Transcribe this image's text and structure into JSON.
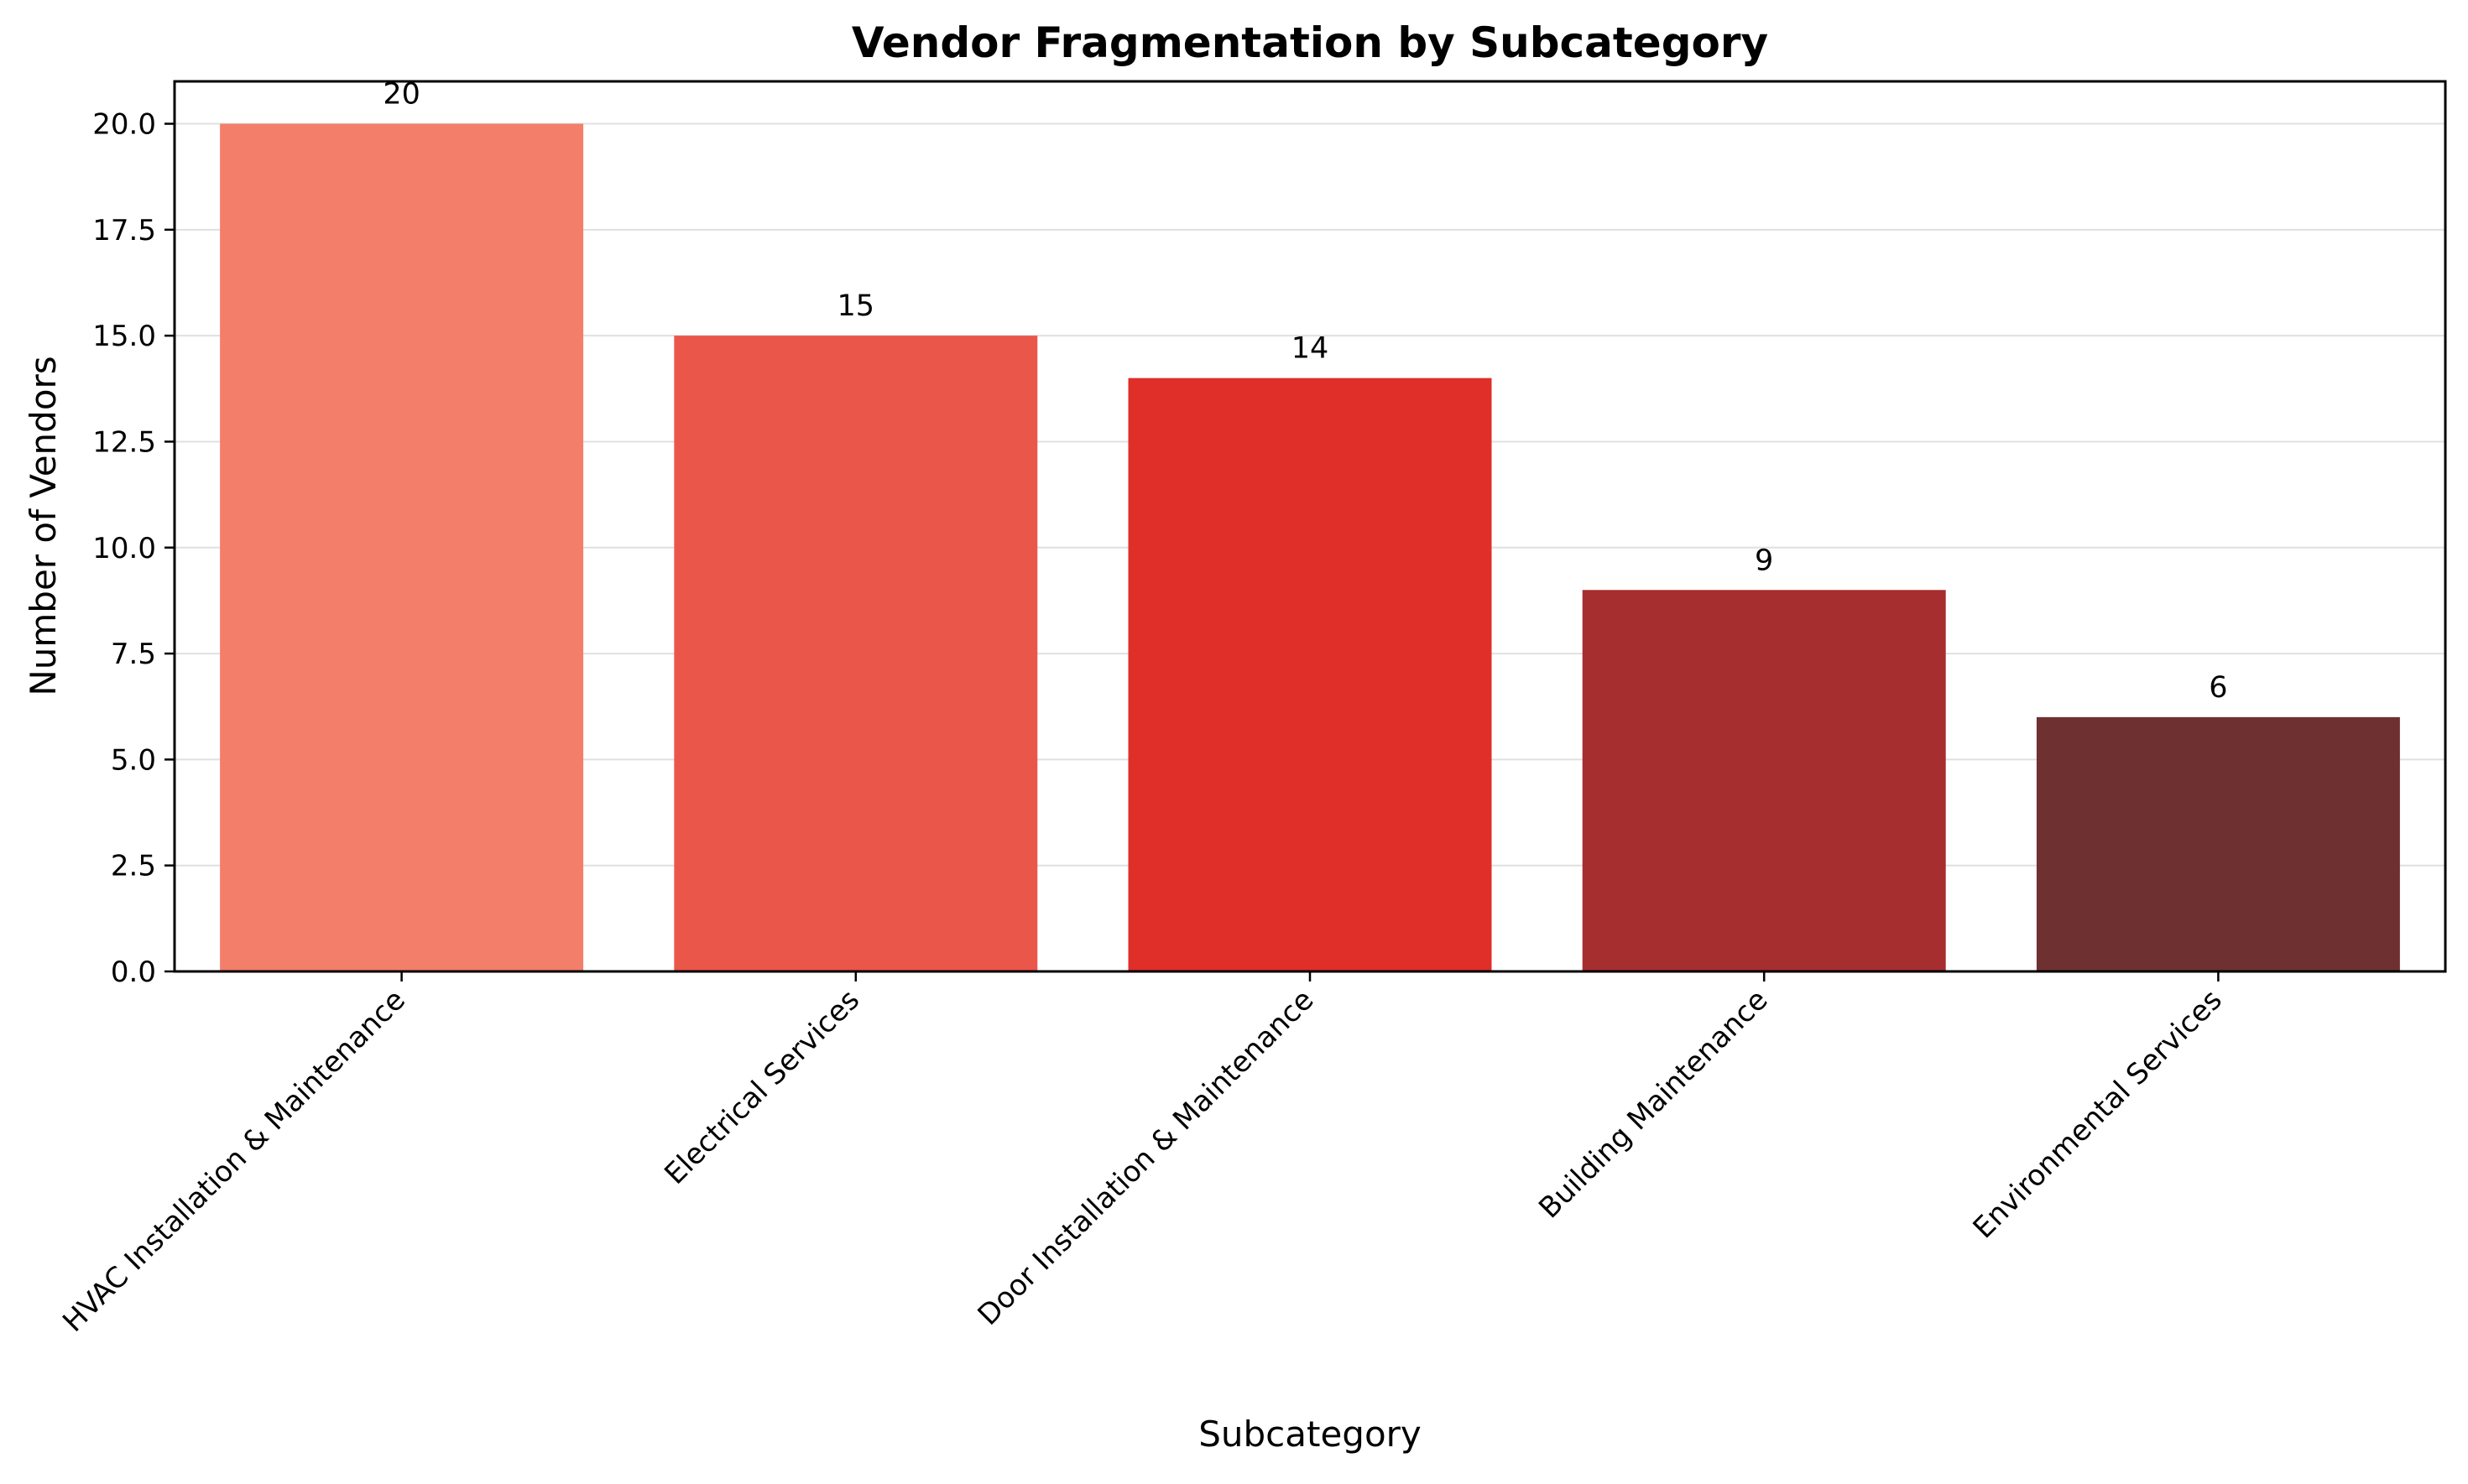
{
  "chart_data": {
    "type": "bar",
    "title": "Vendor Fragmentation by Subcategory",
    "xlabel": "Subcategory",
    "ylabel": "Number of Vendors",
    "categories": [
      "HVAC Installation & Maintenance",
      "Electrical Services",
      "Door Installation & Maintenance",
      "Building Maintenance",
      "Environmental Services"
    ],
    "values": [
      20,
      15,
      14,
      9,
      6
    ],
    "value_labels": [
      "20",
      "15",
      "14",
      "9",
      "6"
    ],
    "colors": [
      "#f37e69",
      "#ea5649",
      "#e02e29",
      "#a62e2e",
      "#6e3030"
    ],
    "ylim": [
      0,
      21
    ],
    "yticks": [
      0,
      2.5,
      5,
      7.5,
      10,
      12.5,
      15,
      17.5,
      20
    ],
    "ytick_labels": [
      "0.0",
      "2.5",
      "5.0",
      "7.5",
      "10.0",
      "12.5",
      "15.0",
      "17.5",
      "20.0"
    ],
    "grid": "y",
    "grid_color": "#e0e0e0",
    "legend": "none"
  }
}
